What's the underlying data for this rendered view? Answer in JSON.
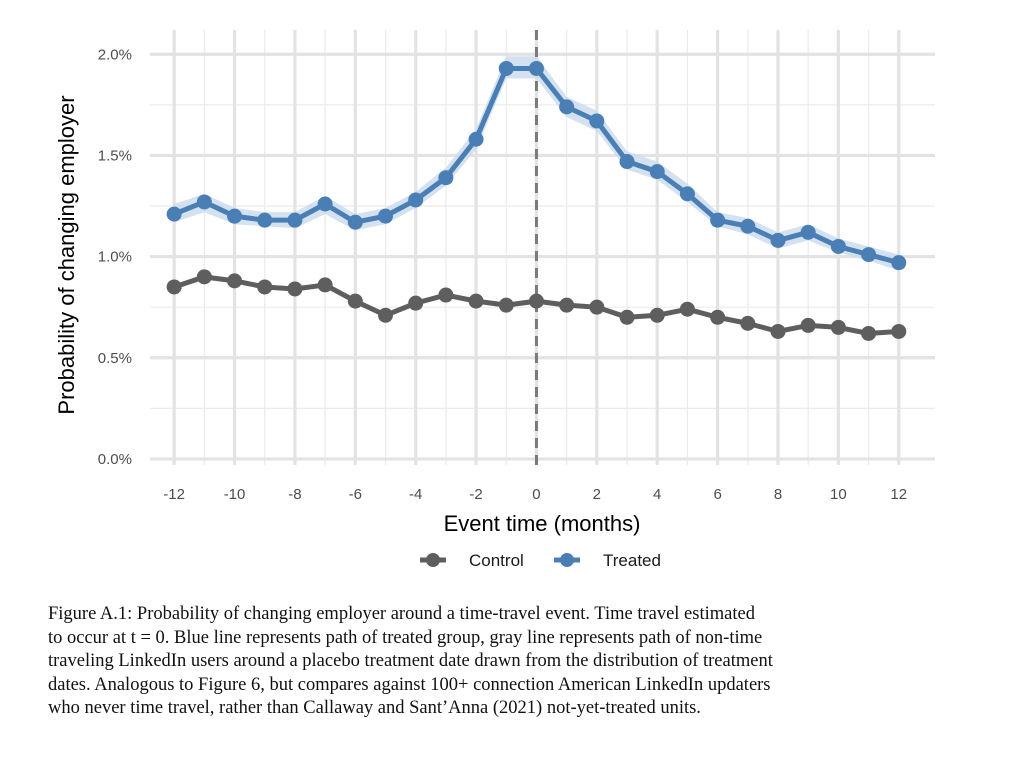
{
  "chart_data": {
    "type": "line",
    "xlabel": "Event time (months)",
    "ylabel": "Probability of changing employer",
    "xlim": [
      -12.8,
      13.2
    ],
    "ylim": [
      -0.03,
      2.12
    ],
    "x_ticks": [
      -12,
      -10,
      -8,
      -6,
      -4,
      -2,
      0,
      2,
      4,
      6,
      8,
      10,
      12
    ],
    "x_tick_labels": [
      "-12",
      "-10",
      "-8",
      "-6",
      "-4",
      "-2",
      "0",
      "2",
      "4",
      "6",
      "8",
      "10",
      "12"
    ],
    "y_ticks": [
      0,
      0.5,
      1.0,
      1.5,
      2.0
    ],
    "y_tick_labels": [
      "0.0%",
      "0.5%",
      "1.0%",
      "1.5%",
      "2.0%"
    ],
    "vline_x": 0,
    "grid": true,
    "legend_position": "bottom",
    "x": [
      -12,
      -11,
      -10,
      -9,
      -8,
      -7,
      -6,
      -5,
      -4,
      -3,
      -2,
      -1,
      0,
      1,
      2,
      3,
      4,
      5,
      6,
      7,
      8,
      9,
      10,
      11,
      12
    ],
    "series": [
      {
        "name": "Control",
        "color": "#5e5e5e",
        "values": [
          0.85,
          0.9,
          0.88,
          0.85,
          0.84,
          0.86,
          0.78,
          0.71,
          0.77,
          0.81,
          0.78,
          0.76,
          0.78,
          0.76,
          0.75,
          0.7,
          0.71,
          0.74,
          0.7,
          0.67,
          0.63,
          0.66,
          0.65,
          0.62,
          0.63
        ]
      },
      {
        "name": "Treated",
        "color": "#4a7fb5",
        "band_color": "#c9d9ec",
        "values": [
          1.21,
          1.27,
          1.2,
          1.18,
          1.18,
          1.26,
          1.17,
          1.2,
          1.28,
          1.39,
          1.58,
          1.93,
          1.93,
          1.74,
          1.67,
          1.47,
          1.42,
          1.31,
          1.18,
          1.15,
          1.08,
          1.12,
          1.05,
          1.01,
          0.97
        ],
        "lower": [
          1.17,
          1.22,
          1.16,
          1.15,
          1.14,
          1.21,
          1.13,
          1.16,
          1.24,
          1.35,
          1.53,
          1.88,
          1.88,
          1.69,
          1.62,
          1.43,
          1.38,
          1.27,
          1.15,
          1.11,
          1.04,
          1.08,
          1.02,
          0.98,
          0.93
        ],
        "upper": [
          1.26,
          1.31,
          1.24,
          1.22,
          1.22,
          1.3,
          1.21,
          1.24,
          1.32,
          1.44,
          1.63,
          1.99,
          1.99,
          1.79,
          1.72,
          1.52,
          1.47,
          1.36,
          1.22,
          1.19,
          1.12,
          1.16,
          1.09,
          1.05,
          1.01
        ]
      }
    ]
  },
  "caption": {
    "lines": [
      "Figure A.1: Probability of changing employer around a time-travel event.  Time travel estimated",
      "to occur at t = 0. Blue line represents path of treated group, gray line represents path of non-time",
      "traveling LinkedIn users around a placebo treatment date drawn from the distribution of treatment",
      "dates. Analogous to Figure 6, but compares against 100+ connection American LinkedIn updaters",
      "who never time travel, rather than Callaway and Sant’Anna (2021) not-yet-treated units."
    ]
  }
}
